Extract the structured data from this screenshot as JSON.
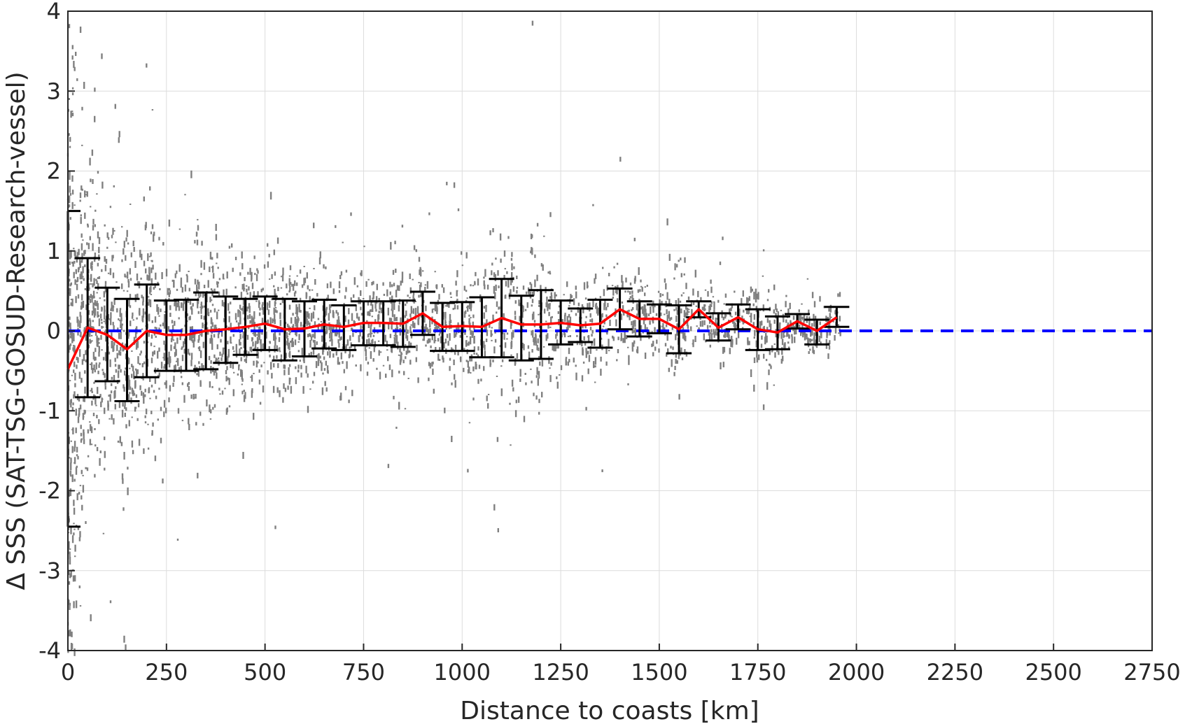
{
  "chart_data": {
    "type": "scatter",
    "xlabel": "Distance to coasts [km]",
    "ylabel": "Δ SSS (SAT-TSG-GOSUD-Research-vessel)",
    "xlim": [
      0,
      2750
    ],
    "ylim": [
      -4,
      4
    ],
    "xticks": [
      0,
      250,
      500,
      750,
      1000,
      1250,
      1500,
      1750,
      2000,
      2250,
      2500,
      2750
    ],
    "yticks": [
      -4,
      -3,
      -2,
      -1,
      0,
      1,
      2,
      3,
      4
    ],
    "grid": true,
    "zero_line": {
      "y": 0,
      "color": "#0000ff",
      "style": "dashed"
    },
    "scatter": {
      "color": "#808080",
      "x_range": [
        0,
        1960
      ]
    },
    "mean_line": {
      "color": "#ff0000",
      "x": [
        0,
        50,
        100,
        150,
        200,
        250,
        300,
        350,
        400,
        450,
        500,
        550,
        600,
        650,
        700,
        750,
        800,
        850,
        900,
        950,
        1000,
        1050,
        1100,
        1150,
        1200,
        1250,
        1300,
        1350,
        1400,
        1450,
        1500,
        1550,
        1600,
        1650,
        1700,
        1750,
        1800,
        1850,
        1900,
        1950
      ],
      "y": [
        -0.48,
        0.04,
        -0.05,
        -0.23,
        0.0,
        -0.05,
        -0.05,
        0.0,
        0.02,
        0.05,
        0.09,
        0.02,
        0.03,
        0.08,
        0.05,
        0.1,
        0.1,
        0.09,
        0.22,
        0.05,
        0.06,
        0.05,
        0.16,
        0.08,
        0.08,
        0.1,
        0.07,
        0.09,
        0.27,
        0.15,
        0.15,
        0.02,
        0.27,
        0.04,
        0.17,
        0.02,
        -0.02,
        0.12,
        0.0,
        0.17
      ]
    },
    "error_bars": {
      "color": "#000000",
      "x": [
        0,
        50,
        100,
        150,
        200,
        250,
        300,
        350,
        400,
        450,
        500,
        550,
        600,
        650,
        700,
        750,
        800,
        850,
        900,
        950,
        1000,
        1050,
        1100,
        1150,
        1200,
        1250,
        1300,
        1350,
        1400,
        1450,
        1500,
        1550,
        1600,
        1650,
        1700,
        1750,
        1800,
        1850,
        1900,
        1950
      ],
      "lower": [
        -2.45,
        -0.83,
        -0.63,
        -0.88,
        -0.58,
        -0.5,
        -0.5,
        -0.48,
        -0.4,
        -0.3,
        -0.24,
        -0.37,
        -0.32,
        -0.22,
        -0.24,
        -0.18,
        -0.18,
        -0.2,
        -0.05,
        -0.25,
        -0.25,
        -0.33,
        -0.33,
        -0.37,
        -0.35,
        -0.17,
        -0.14,
        -0.21,
        0.02,
        -0.07,
        -0.03,
        -0.28,
        0.17,
        -0.12,
        0.02,
        -0.24,
        -0.23,
        0.03,
        -0.17,
        0.05
      ],
      "upper": [
        1.5,
        0.91,
        0.54,
        0.4,
        0.58,
        0.38,
        0.39,
        0.48,
        0.43,
        0.4,
        0.43,
        0.4,
        0.37,
        0.39,
        0.32,
        0.37,
        0.37,
        0.38,
        0.49,
        0.35,
        0.36,
        0.42,
        0.65,
        0.44,
        0.51,
        0.38,
        0.28,
        0.39,
        0.53,
        0.37,
        0.33,
        0.32,
        0.37,
        0.22,
        0.33,
        0.27,
        0.18,
        0.21,
        0.14,
        0.3
      ]
    }
  }
}
